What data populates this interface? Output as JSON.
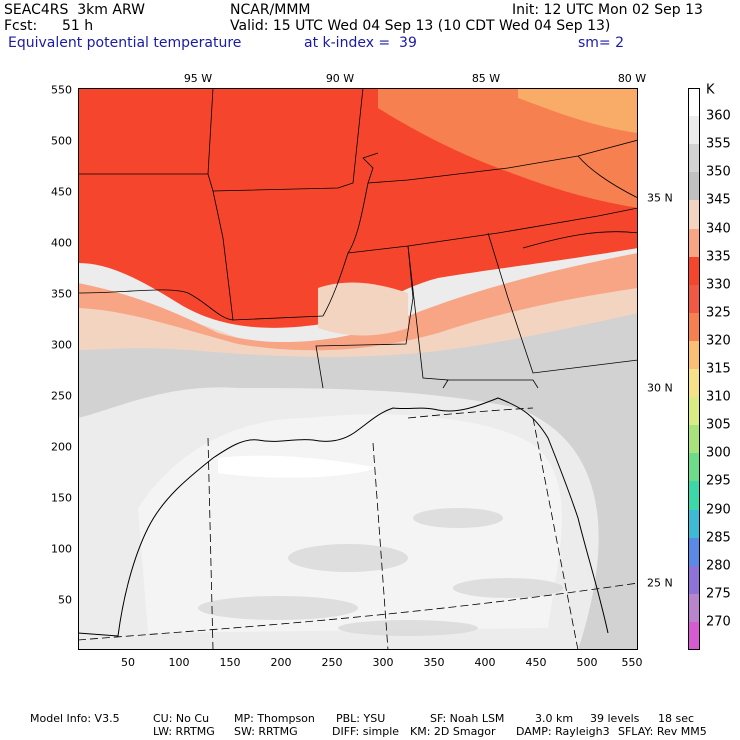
{
  "header": {
    "model": "SEAC4RS  3km ARW",
    "org": "NCAR/MMM",
    "init": "Init: 12 UTC Mon 02 Sep 13",
    "fcst_label": "Fcst:",
    "fcst_value": "51 h",
    "valid": "Valid: 15 UTC Wed 04 Sep 13 (10 CDT Wed 04 Sep 13)",
    "field": "Equivalent potential temperature",
    "level": "at k-index =  39",
    "smoothing": "sm= 2"
  },
  "map": {
    "x_ticks": [
      "50",
      "100",
      "150",
      "200",
      "250",
      "300",
      "350",
      "400",
      "450",
      "500",
      "550"
    ],
    "y_ticks": [
      "50",
      "100",
      "150",
      "200",
      "250",
      "300",
      "350",
      "400",
      "450",
      "500",
      "550"
    ],
    "lon_labels": [
      "95 W",
      "90 W",
      "85 W",
      "80 W"
    ],
    "lat_labels": [
      "35 N",
      "30 N",
      "25 N"
    ]
  },
  "colorbar": {
    "unit": "K",
    "levels": [
      "360",
      "355",
      "350",
      "345",
      "340",
      "335",
      "330",
      "325",
      "320",
      "315",
      "310",
      "305",
      "300",
      "295",
      "290",
      "285",
      "280",
      "275",
      "270"
    ],
    "colors": [
      "#ffffff",
      "#ececec",
      "#d2d2d2",
      "#c0c0c0",
      "#f2d4c0",
      "#f8a585",
      "#f5462d",
      "#f05a45",
      "#f6804f",
      "#f9bf74",
      "#f5e18a",
      "#d8ec83",
      "#a8e27a",
      "#6cdc8a",
      "#3cd8aa",
      "#3cbad6",
      "#5a8ae6",
      "#8e72d8",
      "#b884cc",
      "#d65bd0"
    ]
  },
  "footer": {
    "line1": [
      "Model Info: V3.5",
      "CU: No Cu",
      "MP: Thompson",
      "PBL: YSU",
      "SF: Noah LSM",
      "3.0 km",
      "39 levels",
      "18 sec"
    ],
    "line2": [
      "LW: RRTMG",
      "SW: RRTMG",
      "DIFF: simple",
      "KM: 2D Smagor",
      "DAMP: Rayleigh3",
      "SFLAY: Rev MM5"
    ]
  }
}
